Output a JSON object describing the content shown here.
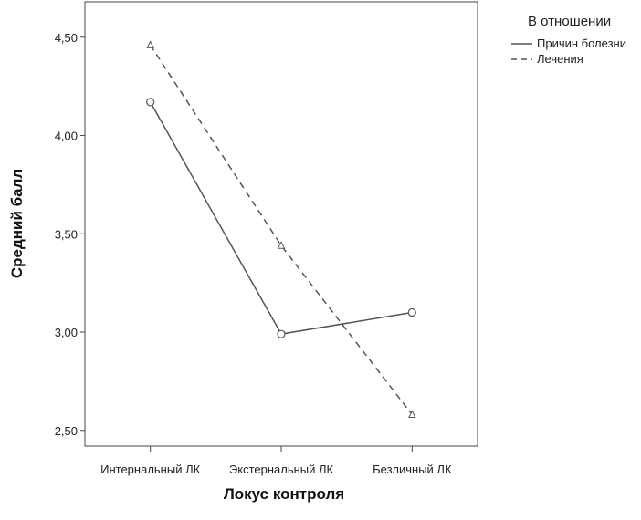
{
  "chart_data": {
    "type": "line",
    "xlabel": "Локус контроля",
    "ylabel": "Средний балл",
    "categories": [
      "Интернальный ЛК",
      "Экстернальный ЛК",
      "Безличный ЛК"
    ],
    "yticks": [
      "2,50",
      "3,00",
      "3,50",
      "4,00",
      "4,50"
    ],
    "ytick_values": [
      2.5,
      3.0,
      3.5,
      4.0,
      4.5
    ],
    "ylim": [
      2.42,
      4.68
    ],
    "grid": false,
    "legend": {
      "title": "В отношении",
      "position": "top-right-outside"
    },
    "series": [
      {
        "name": "Причин болезни",
        "values": [
          4.17,
          2.99,
          3.1
        ],
        "style": "solid",
        "marker": "circle",
        "color": "#555555"
      },
      {
        "name": "Лечения",
        "values": [
          4.46,
          3.44,
          2.58
        ],
        "style": "dashed",
        "marker": "triangle",
        "color": "#555555"
      }
    ]
  }
}
